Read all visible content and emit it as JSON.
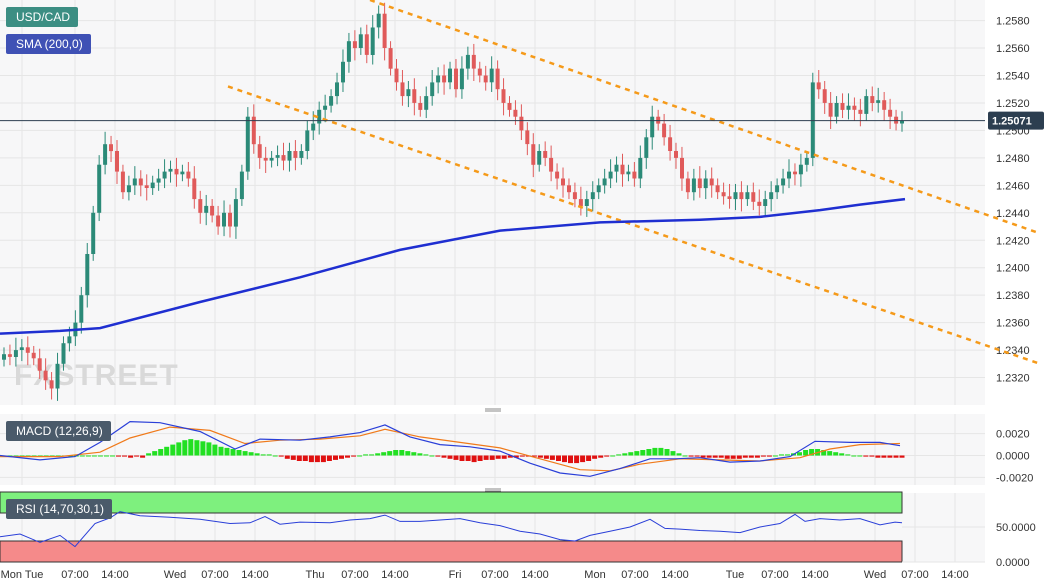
{
  "chart_data": {
    "type": "candlestick",
    "symbol": "USD/CAD",
    "indicator_label": "SMA (200,0)",
    "watermark": "FXSTREET",
    "last_price": "1.25071",
    "last_value": 1.25071,
    "ylim": [
      1.23,
      1.2595
    ],
    "y_ticks": [
      1.258,
      1.256,
      1.254,
      1.252,
      1.25,
      1.248,
      1.246,
      1.244,
      1.242,
      1.24,
      1.238,
      1.236,
      1.234,
      1.232
    ],
    "y_tick_labels": [
      "1.2580",
      "1.2560",
      "1.2540",
      "1.2520",
      "1.2500",
      "1.2480",
      "1.2460",
      "1.2440",
      "1.2420",
      "1.2400",
      "1.2380",
      "1.2360",
      "1.2340",
      "1.2320"
    ],
    "x_labels": [
      "Mon Tue",
      "07:00",
      "14:00",
      "Wed",
      "07:00",
      "14:00",
      "Thu",
      "07:00",
      "14:00",
      "Fri",
      "07:00",
      "14:00",
      "Mon",
      "07:00",
      "14:00",
      "Tue",
      "07:00",
      "14:00",
      "Wed",
      "07:00",
      "14:00"
    ],
    "x_label_pos": [
      22,
      75,
      115,
      175,
      215,
      255,
      315,
      355,
      395,
      455,
      495,
      535,
      595,
      635,
      675,
      735,
      775,
      815,
      875,
      915,
      955
    ],
    "closes": [
      1.2337,
      1.2335,
      1.234,
      1.2342,
      1.2338,
      1.2334,
      1.2325,
      1.2318,
      1.2312,
      1.233,
      1.2345,
      1.235,
      1.236,
      1.238,
      1.241,
      1.244,
      1.2475,
      1.249,
      1.2485,
      1.247,
      1.2455,
      1.246,
      1.2465,
      1.246,
      1.2458,
      1.2462,
      1.2465,
      1.247,
      1.2472,
      1.2468,
      1.247,
      1.2465,
      1.245,
      1.244,
      1.2445,
      1.2438,
      1.243,
      1.244,
      1.243,
      1.245,
      1.247,
      1.251,
      1.249,
      1.248,
      1.2478,
      1.248,
      1.2482,
      1.2478,
      1.2485,
      1.248,
      1.2485,
      1.25,
      1.2505,
      1.2515,
      1.2518,
      1.2525,
      1.2535,
      1.255,
      1.2565,
      1.256,
      1.257,
      1.2555,
      1.2575,
      1.2585,
      1.256,
      1.2545,
      1.2535,
      1.2525,
      1.253,
      1.252,
      1.2515,
      1.2525,
      1.2535,
      1.254,
      1.2535,
      1.2545,
      1.253,
      1.2545,
      1.2555,
      1.2545,
      1.254,
      1.2535,
      1.2545,
      1.253,
      1.252,
      1.2515,
      1.251,
      1.25,
      1.249,
      1.2475,
      1.2485,
      1.248,
      1.247,
      1.2465,
      1.246,
      1.2455,
      1.245,
      1.2445,
      1.245,
      1.2455,
      1.246,
      1.2465,
      1.247,
      1.2475,
      1.2468,
      1.247,
      1.2465,
      1.248,
      1.2495,
      1.251,
      1.2505,
      1.2495,
      1.2485,
      1.248,
      1.2465,
      1.2455,
      1.2465,
      1.2458,
      1.2465,
      1.246,
      1.2455,
      1.2452,
      1.245,
      1.2455,
      1.245,
      1.2455,
      1.2448,
      1.2445,
      1.245,
      1.2455,
      1.246,
      1.2465,
      1.247,
      1.2468,
      1.2475,
      1.248,
      1.2535,
      1.253,
      1.252,
      1.251,
      1.252,
      1.2515,
      1.2518,
      1.2515,
      1.2512,
      1.2525,
      1.252,
      1.2522,
      1.2515,
      1.251,
      1.2505,
      1.2507
    ],
    "sma200": [
      [
        0,
        1.2352
      ],
      [
        60,
        1.2354
      ],
      [
        100,
        1.2356
      ],
      [
        200,
        1.2375
      ],
      [
        300,
        1.2393
      ],
      [
        400,
        1.2413
      ],
      [
        500,
        1.2427
      ],
      [
        600,
        1.2433
      ],
      [
        700,
        1.2435
      ],
      [
        760,
        1.2437
      ],
      [
        820,
        1.2442
      ],
      [
        860,
        1.2446
      ],
      [
        905,
        1.245
      ]
    ],
    "channel_upper": [
      [
        370,
        1.2595
      ],
      [
        1040,
        1.2425
      ]
    ],
    "channel_lower": [
      [
        228,
        1.2532
      ],
      [
        1040,
        1.233
      ]
    ],
    "macd_label": "MACD (12,26,9)",
    "macd_ticks": [
      0.002,
      0.0,
      -0.002
    ],
    "macd_tick_labels": [
      "0.0020",
      "0.0000",
      "-0.0020"
    ],
    "macd_ylim": [
      -0.0027,
      0.0038
    ],
    "macd_line": [
      [
        0,
        0.0
      ],
      [
        40,
        -0.0004
      ],
      [
        75,
        -0.0001
      ],
      [
        100,
        0.0012
      ],
      [
        130,
        0.0031
      ],
      [
        160,
        0.003
      ],
      [
        200,
        0.0022
      ],
      [
        235,
        0.0006
      ],
      [
        260,
        0.0015
      ],
      [
        300,
        0.0014
      ],
      [
        330,
        0.0017
      ],
      [
        360,
        0.0021
      ],
      [
        385,
        0.0028
      ],
      [
        410,
        0.0017
      ],
      [
        440,
        0.001
      ],
      [
        470,
        0.0008
      ],
      [
        500,
        0.0004
      ],
      [
        530,
        -0.0007
      ],
      [
        560,
        -0.0016
      ],
      [
        590,
        -0.0019
      ],
      [
        620,
        -0.0012
      ],
      [
        650,
        -0.0003
      ],
      [
        675,
        -0.0003
      ],
      [
        700,
        -0.0002
      ],
      [
        730,
        -0.0006
      ],
      [
        760,
        -0.0005
      ],
      [
        790,
        -0.0001
      ],
      [
        815,
        0.0013
      ],
      [
        850,
        0.0012
      ],
      [
        880,
        0.0012
      ],
      [
        900,
        0.0009
      ]
    ],
    "macd_signal": [
      [
        0,
        -0.0001
      ],
      [
        60,
        -0.0001
      ],
      [
        100,
        0.0003
      ],
      [
        130,
        0.0016
      ],
      [
        170,
        0.0026
      ],
      [
        210,
        0.0023
      ],
      [
        245,
        0.0011
      ],
      [
        280,
        0.0014
      ],
      [
        320,
        0.0015
      ],
      [
        360,
        0.0018
      ],
      [
        385,
        0.0024
      ],
      [
        420,
        0.0017
      ],
      [
        460,
        0.0012
      ],
      [
        500,
        0.0007
      ],
      [
        540,
        -0.0003
      ],
      [
        580,
        -0.0013
      ],
      [
        610,
        -0.0014
      ],
      [
        640,
        -0.0008
      ],
      [
        680,
        -0.0003
      ],
      [
        720,
        -0.0004
      ],
      [
        760,
        -0.0005
      ],
      [
        800,
        -0.0002
      ],
      [
        830,
        0.0006
      ],
      [
        860,
        0.001
      ],
      [
        900,
        0.0011
      ]
    ],
    "macd_histogram": [
      0.0,
      0.0,
      0.0,
      0.0,
      0.0,
      0.0,
      0.0,
      0.0,
      0.0,
      0.0,
      0.0,
      0.0,
      0.0,
      0.0,
      0.0,
      0.0,
      0.0,
      0.0,
      0.0,
      -0.0001,
      -0.0001,
      -0.0002,
      -0.0001,
      -0.0002,
      0.0002,
      0.0004,
      0.0006,
      0.0008,
      0.001,
      0.0012,
      0.0014,
      0.0015,
      0.0014,
      0.0013,
      0.0012,
      0.001,
      0.0008,
      0.0007,
      0.0006,
      0.0005,
      0.0004,
      0.0003,
      0.0002,
      0.0001,
      0.0001,
      0.0,
      -0.0001,
      -0.0003,
      -0.0004,
      -0.0005,
      -0.0005,
      -0.0006,
      -0.0006,
      -0.0006,
      -0.0005,
      -0.0004,
      -0.0003,
      -0.0002,
      -0.0001,
      0.0,
      0.0001,
      0.0001,
      0.0002,
      0.0003,
      0.0004,
      0.0005,
      0.0005,
      0.0004,
      0.0003,
      0.0002,
      0.0001,
      0.0,
      -0.0001,
      -0.0002,
      -0.0003,
      -0.0004,
      -0.0005,
      -0.0005,
      -0.0006,
      -0.0005,
      -0.0004,
      -0.0004,
      -0.0003,
      -0.0003,
      -0.0002,
      -0.0002,
      -0.0001,
      -0.0001,
      -0.0001,
      -0.0002,
      -0.0003,
      -0.0004,
      -0.0005,
      -0.0006,
      -0.0007,
      -0.0007,
      -0.0006,
      -0.0005,
      -0.0003,
      -0.0002,
      -0.0001,
      0.0,
      0.0001,
      0.0002,
      0.0003,
      0.0004,
      0.0005,
      0.0006,
      0.0007,
      0.0007,
      0.0006,
      0.0004,
      0.0002,
      0.0,
      -0.0001,
      -0.0001,
      -0.0002,
      -0.0002,
      -0.0002,
      -0.0002,
      -0.0003,
      -0.0003,
      -0.0003,
      -0.0002,
      -0.0002,
      -0.0002,
      -0.0001,
      -0.0001,
      0.0,
      0.0001,
      0.0001,
      0.0002,
      0.0003,
      0.0005,
      0.0006,
      0.0006,
      0.0005,
      0.0004,
      0.0003,
      0.0002,
      0.0001,
      0.0,
      0.0,
      -0.0001,
      -0.0001,
      -0.0002,
      -0.0002,
      -0.0002,
      -0.0002,
      -0.0002
    ],
    "rsi_label": "RSI (14,70,30,1)",
    "rsi_ticks": [
      50.0,
      0.0
    ],
    "rsi_tick_labels": [
      "50.0000",
      "0.0000"
    ],
    "rsi_ylim": [
      0,
      100
    ],
    "rsi_overbought": 70,
    "rsi_oversold": 30,
    "rsi": [
      [
        0,
        36
      ],
      [
        20,
        40
      ],
      [
        40,
        28
      ],
      [
        60,
        38
      ],
      [
        75,
        22
      ],
      [
        95,
        55
      ],
      [
        110,
        63
      ],
      [
        120,
        72
      ],
      [
        140,
        66
      ],
      [
        170,
        64
      ],
      [
        200,
        61
      ],
      [
        230,
        55
      ],
      [
        250,
        56
      ],
      [
        265,
        65
      ],
      [
        280,
        54
      ],
      [
        300,
        57
      ],
      [
        330,
        56
      ],
      [
        350,
        60
      ],
      [
        370,
        62
      ],
      [
        385,
        67
      ],
      [
        400,
        58
      ],
      [
        420,
        58
      ],
      [
        440,
        60
      ],
      [
        460,
        62
      ],
      [
        480,
        56
      ],
      [
        500,
        52
      ],
      [
        520,
        44
      ],
      [
        540,
        40
      ],
      [
        560,
        32
      ],
      [
        575,
        30
      ],
      [
        590,
        38
      ],
      [
        610,
        44
      ],
      [
        630,
        50
      ],
      [
        650,
        61
      ],
      [
        665,
        48
      ],
      [
        680,
        47
      ],
      [
        700,
        45
      ],
      [
        720,
        44
      ],
      [
        740,
        42
      ],
      [
        760,
        50
      ],
      [
        780,
        55
      ],
      [
        795,
        68
      ],
      [
        805,
        58
      ],
      [
        820,
        62
      ],
      [
        840,
        60
      ],
      [
        860,
        62
      ],
      [
        880,
        53
      ],
      [
        895,
        57
      ],
      [
        902,
        56
      ]
    ]
  }
}
